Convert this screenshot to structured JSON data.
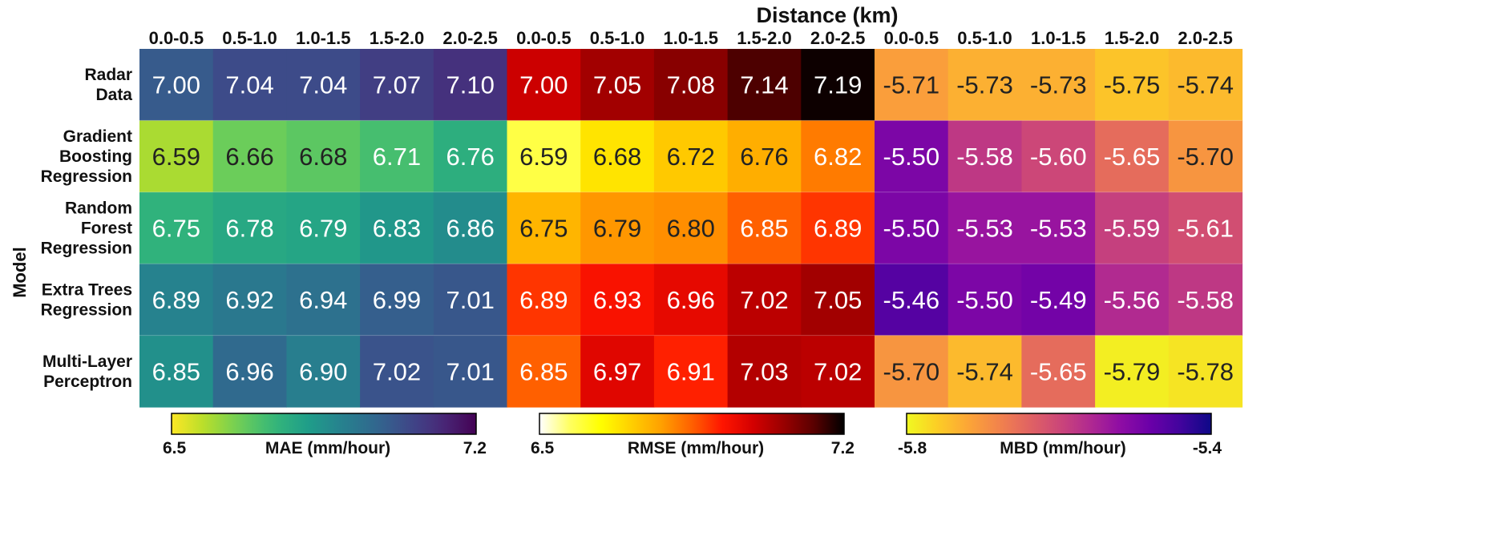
{
  "chart_data": {
    "type": "heatmap",
    "title": "Distance (km)",
    "ylabel": "Model",
    "column_groups": [
      "0.0-0.5",
      "0.5-1.0",
      "1.0-1.5",
      "1.5-2.0",
      "2.0-2.5"
    ],
    "rows": [
      [
        "Radar",
        "Data"
      ],
      [
        "Gradient",
        "Boosting",
        "Regression"
      ],
      [
        "Random",
        "Forest",
        "Regression"
      ],
      [
        "Extra Trees",
        "Regression"
      ],
      [
        "Multi-Layer",
        "Perceptron"
      ]
    ],
    "panels": [
      {
        "metric": "MAE (mm/hour)",
        "colormap": "viridis_r",
        "range": [
          6.5,
          7.2
        ],
        "range_labels": [
          "6.5",
          "7.2"
        ],
        "values": [
          [
            "7.00",
            "7.04",
            "7.04",
            "7.07",
            "7.10"
          ],
          [
            "6.59",
            "6.66",
            "6.68",
            "6.71",
            "6.76"
          ],
          [
            "6.75",
            "6.78",
            "6.79",
            "6.83",
            "6.86"
          ],
          [
            "6.89",
            "6.92",
            "6.94",
            "6.99",
            "7.01"
          ],
          [
            "6.85",
            "6.96",
            "6.90",
            "7.02",
            "7.01"
          ]
        ]
      },
      {
        "metric": "RMSE (mm/hour)",
        "colormap": "hot_r",
        "range": [
          6.5,
          7.2
        ],
        "range_labels": [
          "6.5",
          "7.2"
        ],
        "values": [
          [
            "7.00",
            "7.05",
            "7.08",
            "7.14",
            "7.19"
          ],
          [
            "6.59",
            "6.68",
            "6.72",
            "6.76",
            "6.82"
          ],
          [
            "6.75",
            "6.79",
            "6.80",
            "6.85",
            "6.89"
          ],
          [
            "6.89",
            "6.93",
            "6.96",
            "7.02",
            "7.05"
          ],
          [
            "6.85",
            "6.97",
            "6.91",
            "7.03",
            "7.02"
          ]
        ]
      },
      {
        "metric": "MBD (mm/hour)",
        "colormap": "plasma_r",
        "range": [
          -5.8,
          -5.4
        ],
        "range_labels": [
          "-5.8",
          "-5.4"
        ],
        "values": [
          [
            "-5.71",
            "-5.73",
            "-5.73",
            "-5.75",
            "-5.74"
          ],
          [
            "-5.50",
            "-5.58",
            "-5.60",
            "-5.65",
            "-5.70"
          ],
          [
            "-5.50",
            "-5.53",
            "-5.53",
            "-5.59",
            "-5.61"
          ],
          [
            "-5.46",
            "-5.50",
            "-5.49",
            "-5.56",
            "-5.58"
          ],
          [
            "-5.70",
            "-5.74",
            "-5.65",
            "-5.79",
            "-5.78"
          ]
        ]
      }
    ]
  }
}
